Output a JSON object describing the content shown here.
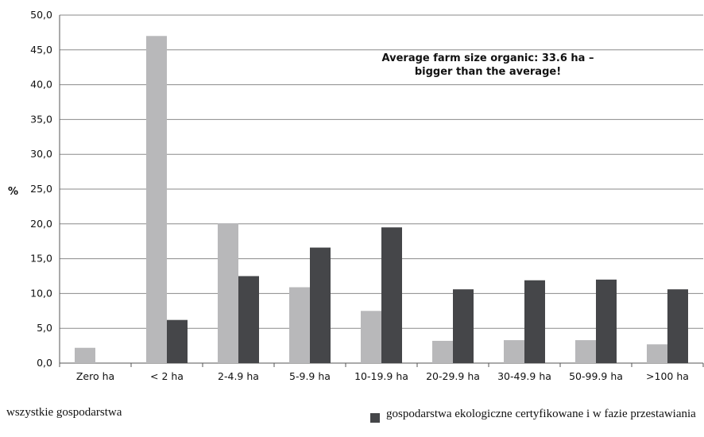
{
  "chart_data": {
    "type": "bar",
    "categories": [
      "Zero ha",
      "< 2 ha",
      "2-4.9 ha",
      "5-9.9 ha",
      "10-19.9 ha",
      "20-29.9 ha",
      "30-49.9 ha",
      "50-99.9 ha",
      ">100 ha"
    ],
    "series": [
      {
        "name": "wszystkie gospodarstwa",
        "color": "#b8b8ba",
        "values": [
          2.2,
          47.0,
          20.1,
          10.9,
          7.5,
          3.2,
          3.3,
          3.3,
          2.7
        ]
      },
      {
        "name": "gospodarstwa ekologiczne certyfikowane i w fazie przestawiania",
        "color": "#454649",
        "values": [
          null,
          6.2,
          12.5,
          16.6,
          19.5,
          10.6,
          11.9,
          12.0,
          10.6
        ]
      }
    ],
    "ylabel": "%",
    "ylim": [
      0,
      50
    ],
    "yticks": [
      "0,0",
      "5,0",
      "10,0",
      "15,0",
      "20,0",
      "25,0",
      "30,0",
      "35,0",
      "40,0",
      "45,0",
      "50,0"
    ],
    "grid": true,
    "annotation": [
      "Average farm size organic: 33.6 ha –",
      "bigger than the average!"
    ],
    "legend_position": "bottom"
  }
}
